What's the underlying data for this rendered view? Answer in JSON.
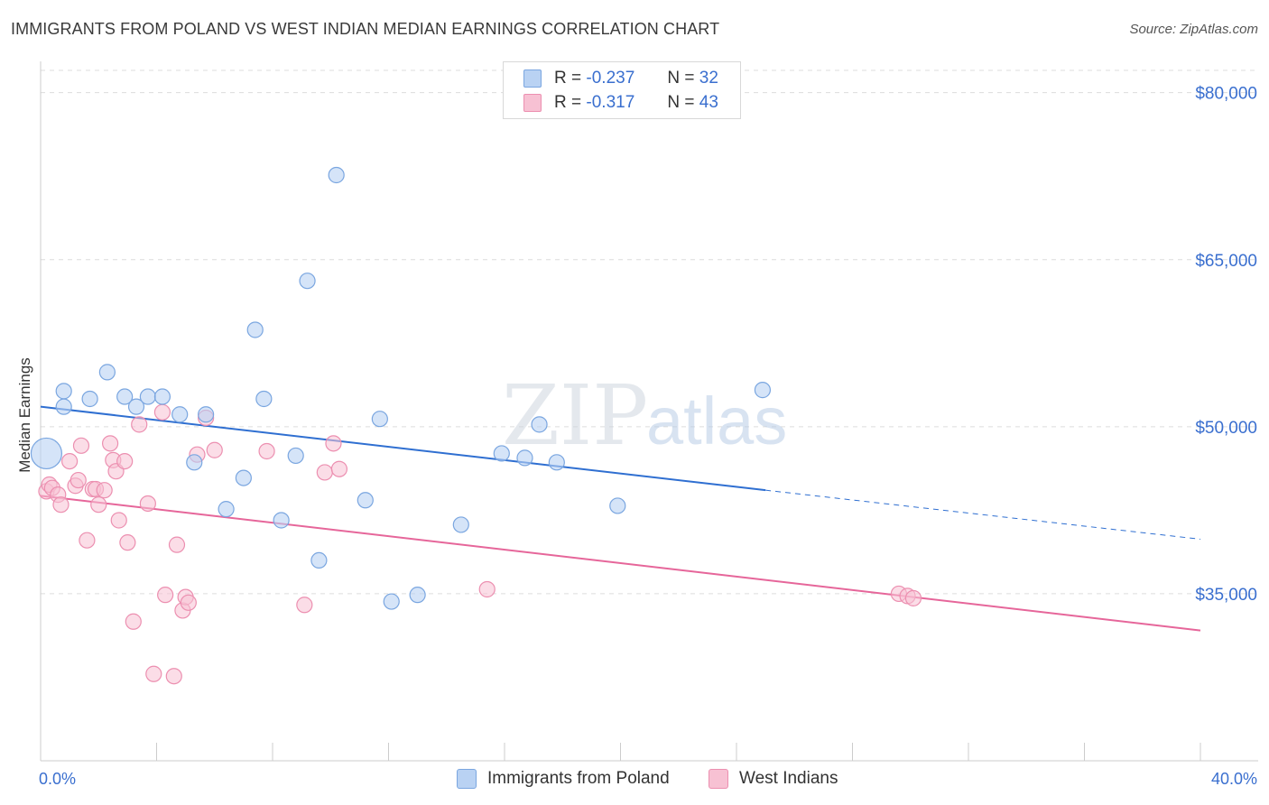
{
  "title": "IMMIGRANTS FROM POLAND VS WEST INDIAN MEDIAN EARNINGS CORRELATION CHART",
  "source": "Source: ZipAtlas.com",
  "watermark": {
    "zip": "ZIP",
    "atlas": "atlas"
  },
  "legend": {
    "r_label": "R =",
    "n_label": "N =",
    "series": [
      {
        "r": "-0.237",
        "n": "32"
      },
      {
        "r": "-0.317",
        "n": "43"
      }
    ]
  },
  "colors": {
    "blue_fill": "#b9d2f3",
    "blue_stroke": "#7aa6e0",
    "blue_line": "#2f6fd1",
    "pink_fill": "#f7c1d3",
    "pink_stroke": "#ec8fb0",
    "pink_line": "#e6669a",
    "axis_text": "#3a6fcf",
    "grid": "#dcdcdc"
  },
  "chart_data": {
    "type": "scatter",
    "title": "IMMIGRANTS FROM POLAND VS WEST INDIAN MEDIAN EARNINGS CORRELATION CHART",
    "xlabel": "",
    "ylabel": "Median Earnings",
    "xlim": [
      0,
      40
    ],
    "ylim": [
      20000,
      82000
    ],
    "x_tick_labels": [
      "0.0%",
      "40.0%"
    ],
    "y_ticks": [
      35000,
      50000,
      65000,
      80000
    ],
    "y_tick_labels": [
      "$35,000",
      "$50,000",
      "$65,000",
      "$80,000"
    ],
    "grid": true,
    "legend_position": "bottom",
    "series": [
      {
        "name": "Immigrants from Poland",
        "points": [
          [
            0.2,
            47600
          ],
          [
            0.8,
            53200
          ],
          [
            0.8,
            51800
          ],
          [
            1.7,
            52500
          ],
          [
            2.3,
            54900
          ],
          [
            2.9,
            52700
          ],
          [
            3.3,
            51800
          ],
          [
            3.7,
            52700
          ],
          [
            4.2,
            52700
          ],
          [
            4.8,
            51100
          ],
          [
            5.3,
            46800
          ],
          [
            5.7,
            51100
          ],
          [
            6.4,
            42600
          ],
          [
            7.0,
            45400
          ],
          [
            7.4,
            58700
          ],
          [
            7.7,
            52500
          ],
          [
            8.3,
            41600
          ],
          [
            8.8,
            47400
          ],
          [
            9.2,
            63100
          ],
          [
            9.6,
            38000
          ],
          [
            10.2,
            72600
          ],
          [
            11.2,
            43400
          ],
          [
            11.7,
            50700
          ],
          [
            12.1,
            34300
          ],
          [
            13.0,
            34900
          ],
          [
            14.5,
            41200
          ],
          [
            15.9,
            47600
          ],
          [
            16.7,
            47200
          ],
          [
            17.2,
            50200
          ],
          [
            17.8,
            46800
          ],
          [
            19.9,
            42900
          ],
          [
            24.9,
            53300
          ]
        ],
        "trend": {
          "x": [
            0,
            25
          ],
          "y": [
            51800,
            44300
          ],
          "dashed_to": [
            40,
            39900
          ]
        }
      },
      {
        "name": "West Indians",
        "points": [
          [
            0.2,
            44200
          ],
          [
            0.3,
            44800
          ],
          [
            0.4,
            44500
          ],
          [
            0.6,
            43900
          ],
          [
            0.7,
            43000
          ],
          [
            1.0,
            46900
          ],
          [
            1.2,
            44700
          ],
          [
            1.3,
            45200
          ],
          [
            1.4,
            48300
          ],
          [
            1.6,
            39800
          ],
          [
            1.8,
            44400
          ],
          [
            1.9,
            44400
          ],
          [
            2.0,
            43000
          ],
          [
            2.2,
            44300
          ],
          [
            2.4,
            48500
          ],
          [
            2.5,
            47000
          ],
          [
            2.6,
            46000
          ],
          [
            2.7,
            41600
          ],
          [
            2.9,
            46900
          ],
          [
            3.0,
            39600
          ],
          [
            3.2,
            32500
          ],
          [
            3.4,
            50200
          ],
          [
            3.7,
            43100
          ],
          [
            3.9,
            27800
          ],
          [
            4.2,
            51300
          ],
          [
            4.3,
            34900
          ],
          [
            4.6,
            27600
          ],
          [
            4.7,
            39400
          ],
          [
            4.9,
            33500
          ],
          [
            5.0,
            34700
          ],
          [
            5.1,
            34200
          ],
          [
            5.4,
            47500
          ],
          [
            5.7,
            50800
          ],
          [
            6.0,
            47900
          ],
          [
            7.8,
            47800
          ],
          [
            9.1,
            34000
          ],
          [
            9.8,
            45900
          ],
          [
            10.1,
            48500
          ],
          [
            10.3,
            46200
          ],
          [
            15.4,
            35400
          ],
          [
            29.6,
            35000
          ],
          [
            29.9,
            34800
          ],
          [
            30.1,
            34600
          ]
        ],
        "trend": {
          "x": [
            0,
            40
          ],
          "y": [
            43800,
            31700
          ]
        }
      }
    ]
  }
}
